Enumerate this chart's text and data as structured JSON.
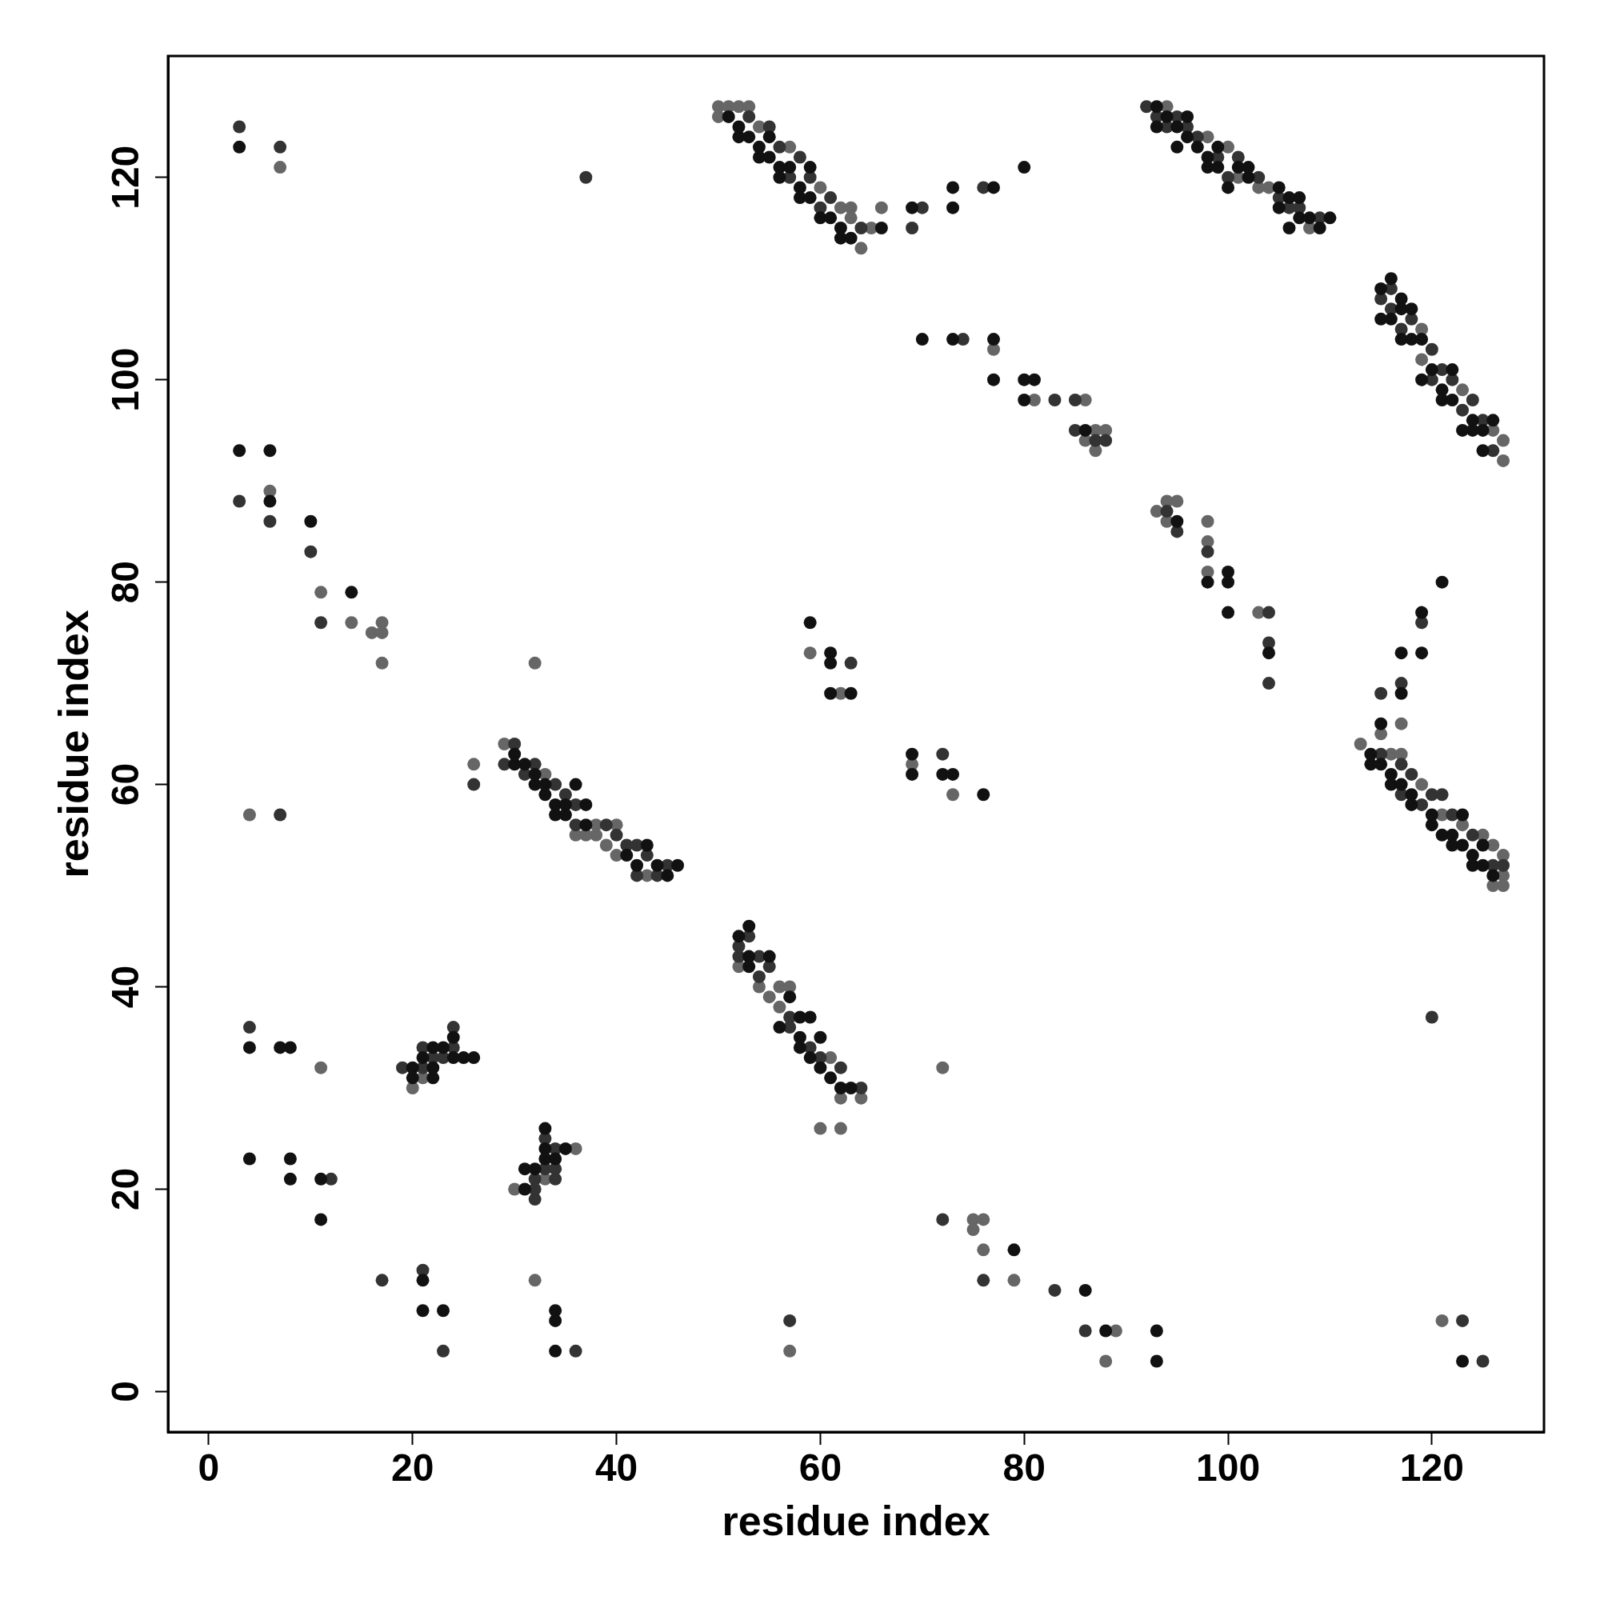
{
  "chart_data": {
    "type": "scatter",
    "xlabel": "residue index",
    "ylabel": "residue index",
    "xlim": [
      -4,
      131
    ],
    "ylim": [
      -4,
      132
    ],
    "xticks": [
      0,
      20,
      40,
      60,
      80,
      100,
      120
    ],
    "yticks": [
      0,
      20,
      40,
      60,
      80,
      100,
      120
    ],
    "grid": false,
    "legend": false,
    "marker": "circle",
    "series": [
      {
        "color": "#111111",
        "x": [
          3,
          3,
          6,
          6,
          10,
          14,
          30,
          30,
          31,
          32,
          32,
          33,
          33,
          34,
          34,
          35,
          35,
          36,
          37,
          37,
          41,
          42,
          43,
          44,
          45,
          46,
          4,
          7,
          8,
          20,
          20,
          21,
          22,
          22,
          22,
          23,
          24,
          24,
          25,
          26,
          4,
          8,
          8,
          11,
          11,
          31,
          31,
          32,
          33,
          33,
          33,
          34,
          35,
          21,
          21,
          23,
          34,
          34,
          34,
          51,
          52,
          52,
          53,
          54,
          54,
          55,
          55,
          56,
          56,
          57,
          58,
          58,
          59,
          59,
          60,
          61,
          62,
          62,
          63,
          66,
          69,
          73,
          73,
          77,
          80,
          93,
          93,
          94,
          95,
          95,
          96,
          96,
          97,
          98,
          98,
          99,
          99,
          101,
          102,
          102,
          100,
          105,
          105,
          106,
          106,
          107,
          107,
          108,
          109,
          110,
          70,
          73,
          77,
          77,
          80,
          81,
          80,
          86,
          115,
          115,
          116,
          116,
          117,
          117,
          117,
          118,
          118,
          119,
          119,
          120,
          121,
          121,
          122,
          122,
          123,
          124,
          124,
          125,
          125,
          126,
          95,
          98,
          100,
          100,
          100,
          104,
          59,
          61,
          61,
          61,
          63,
          69,
          69,
          72,
          73,
          76,
          119,
          121,
          117,
          119,
          117,
          115,
          114,
          114,
          115,
          116,
          116,
          117,
          118,
          118,
          120,
          120,
          121,
          122,
          122,
          123,
          123,
          124,
          124,
          125,
          125,
          126,
          52,
          53,
          53,
          53,
          55,
          56,
          57,
          58,
          58,
          58,
          59,
          59,
          60,
          60,
          61,
          62,
          63,
          79,
          86,
          88,
          93,
          93,
          123
        ],
        "values": [
          123,
          93,
          93,
          88,
          86,
          79,
          62,
          63,
          62,
          60,
          61,
          59,
          60,
          58,
          57,
          58,
          57,
          60,
          58,
          56,
          53,
          52,
          54,
          52,
          51,
          52,
          34,
          34,
          34,
          32,
          31,
          33,
          34,
          31,
          32,
          34,
          35,
          33,
          33,
          33,
          23,
          23,
          21,
          21,
          17,
          22,
          20,
          22,
          26,
          24,
          23,
          23,
          24,
          11,
          8,
          8,
          8,
          7,
          4,
          126,
          125,
          124,
          124,
          123,
          122,
          124,
          122,
          121,
          120,
          121,
          119,
          118,
          121,
          118,
          116,
          116,
          115,
          114,
          114,
          115,
          117,
          119,
          117,
          119,
          121,
          127,
          125,
          126,
          125,
          123,
          126,
          124,
          123,
          122,
          121,
          123,
          121,
          121,
          121,
          120,
          119,
          119,
          117,
          118,
          115,
          118,
          116,
          116,
          115,
          116,
          104,
          104,
          104,
          100,
          100,
          100,
          98,
          95,
          109,
          106,
          110,
          106,
          108,
          107,
          104,
          107,
          104,
          104,
          100,
          101,
          99,
          98,
          101,
          98,
          95,
          96,
          95,
          95,
          93,
          96,
          86,
          80,
          81,
          80,
          77,
          73,
          76,
          73,
          72,
          69,
          69,
          63,
          61,
          61,
          61,
          59,
          77,
          80,
          73,
          73,
          69,
          66,
          63,
          62,
          62,
          61,
          60,
          60,
          59,
          58,
          57,
          56,
          55,
          55,
          54,
          57,
          54,
          53,
          52,
          54,
          52,
          51,
          45,
          46,
          43,
          42,
          43,
          36,
          39,
          37,
          35,
          34,
          37,
          33,
          35,
          32,
          31,
          30,
          30,
          14,
          10,
          6,
          6,
          3,
          3
        ]
      },
      {
        "color": "#333333",
        "x": [
          3,
          3,
          7,
          37,
          6,
          10,
          11,
          7,
          26,
          30,
          29,
          31,
          32,
          34,
          35,
          36,
          36,
          39,
          40,
          41,
          42,
          42,
          43,
          44,
          45,
          4,
          19,
          21,
          21,
          22,
          23,
          24,
          24,
          12,
          32,
          32,
          32,
          33,
          33,
          34,
          34,
          34,
          17,
          21,
          23,
          36,
          57,
          53,
          55,
          56,
          57,
          58,
          59,
          60,
          61,
          64,
          69,
          70,
          76,
          92,
          93,
          94,
          95,
          96,
          97,
          99,
          100,
          101,
          103,
          105,
          106,
          107,
          109,
          74,
          83,
          85,
          85,
          87,
          88,
          115,
          116,
          116,
          117,
          118,
          120,
          120,
          121,
          122,
          123,
          124,
          125,
          126,
          94,
          95,
          98,
          104,
          104,
          104,
          63,
          72,
          119,
          117,
          115,
          115,
          117,
          117,
          118,
          119,
          120,
          121,
          122,
          124,
          126,
          127,
          52,
          52,
          53,
          54,
          54,
          55,
          57,
          57,
          59,
          60,
          62,
          64,
          120,
          72,
          76,
          83,
          86,
          123,
          125
        ],
        "values": [
          125,
          88,
          123,
          120,
          86,
          83,
          76,
          57,
          60,
          64,
          62,
          61,
          62,
          60,
          59,
          58,
          56,
          56,
          55,
          54,
          54,
          51,
          53,
          51,
          52,
          36,
          32,
          34,
          32,
          33,
          33,
          36,
          34,
          21,
          21,
          20,
          19,
          25,
          22,
          24,
          22,
          21,
          11,
          12,
          4,
          4,
          7,
          126,
          125,
          123,
          120,
          122,
          120,
          117,
          118,
          115,
          115,
          117,
          119,
          127,
          126,
          125,
          126,
          125,
          124,
          122,
          120,
          122,
          120,
          118,
          117,
          117,
          116,
          104,
          98,
          98,
          95,
          94,
          94,
          108,
          109,
          107,
          105,
          106,
          103,
          100,
          101,
          100,
          97,
          98,
          96,
          93,
          87,
          85,
          83,
          77,
          74,
          70,
          72,
          63,
          76,
          70,
          69,
          63,
          62,
          59,
          61,
          58,
          59,
          59,
          57,
          55,
          52,
          52,
          44,
          43,
          45,
          43,
          41,
          42,
          37,
          36,
          34,
          33,
          32,
          30,
          37,
          17,
          11,
          10,
          6,
          7,
          3
        ]
      },
      {
        "color": "#666666",
        "x": [
          7,
          6,
          11,
          14,
          16,
          17,
          17,
          17,
          32,
          4,
          26,
          29,
          33,
          36,
          37,
          38,
          38,
          39,
          40,
          40,
          43,
          20,
          21,
          11,
          30,
          33,
          36,
          32,
          57,
          50,
          51,
          52,
          53,
          50,
          54,
          57,
          60,
          62,
          63,
          63,
          64,
          65,
          66,
          94,
          98,
          100,
          101,
          103,
          104,
          108,
          77,
          81,
          86,
          86,
          87,
          87,
          88,
          119,
          119,
          123,
          126,
          127,
          127,
          93,
          94,
          95,
          94,
          98,
          98,
          98,
          103,
          59,
          62,
          69,
          73,
          117,
          113,
          115,
          116,
          117,
          119,
          121,
          123,
          125,
          126,
          126,
          127,
          127,
          127,
          52,
          54,
          55,
          56,
          56,
          57,
          61,
          62,
          64,
          60,
          62,
          72,
          75,
          75,
          76,
          76,
          79,
          88,
          89,
          121
        ],
        "values": [
          121,
          89,
          79,
          76,
          75,
          76,
          75,
          72,
          72,
          57,
          62,
          64,
          61,
          55,
          55,
          56,
          55,
          54,
          56,
          53,
          51,
          30,
          31,
          32,
          20,
          21,
          24,
          11,
          4,
          127,
          127,
          127,
          127,
          126,
          125,
          123,
          119,
          117,
          117,
          116,
          113,
          115,
          117,
          127,
          124,
          123,
          120,
          119,
          119,
          115,
          103,
          98,
          98,
          94,
          95,
          93,
          95,
          105,
          102,
          99,
          95,
          94,
          92,
          87,
          88,
          88,
          86,
          86,
          84,
          81,
          77,
          73,
          69,
          62,
          59,
          66,
          64,
          65,
          63,
          63,
          60,
          57,
          56,
          55,
          54,
          50,
          53,
          51,
          50,
          42,
          40,
          39,
          40,
          38,
          40,
          33,
          29,
          29,
          26,
          26,
          32,
          17,
          16,
          17,
          14,
          11,
          3,
          6,
          7
        ]
      }
    ]
  }
}
